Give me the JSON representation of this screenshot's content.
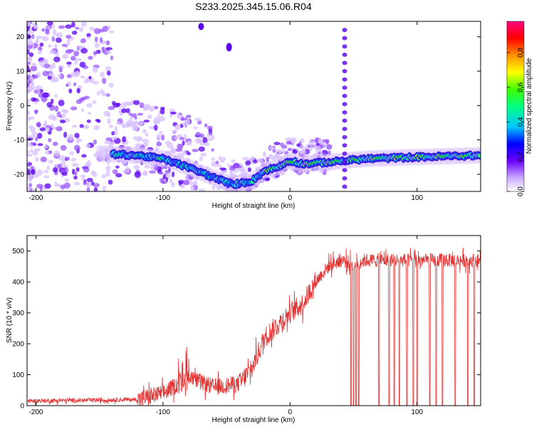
{
  "figure_title": "S233.2025.345.15.06.R04",
  "chart_data": [
    {
      "type": "heatmap",
      "title": "S233.2025.345.15.06.R04",
      "xlabel": "Height of straight line (km)",
      "ylabel": "Frequency (Hz)",
      "xlim": [
        -207,
        150
      ],
      "ylim": [
        -25,
        24.5
      ],
      "xticks": [
        -200,
        -100,
        0,
        100
      ],
      "xtick_labels": [
        "-200",
        "-100",
        "0",
        "100"
      ],
      "yticks": [
        20,
        10,
        0,
        -10,
        -20
      ],
      "ytick_labels": [
        "20",
        "10",
        "0",
        "-10",
        "-20"
      ],
      "ridge": {
        "description": "dominant spectral ridge frequency vs height",
        "x": [
          -150,
          -120,
          -100,
          -80,
          -60,
          -45,
          -30,
          -20,
          -10,
          0,
          10,
          30,
          60,
          100,
          150
        ],
        "y": [
          -14,
          -14.5,
          -15.5,
          -18,
          -21,
          -23,
          -22,
          -19,
          -18,
          -16,
          -17,
          -16.5,
          -15.5,
          -15,
          -14.5
        ]
      },
      "vertical_line_x": 43,
      "colorbar": {
        "label": "Normalized spectral amplitude",
        "range": [
          0,
          0.98
        ],
        "ticks": [
          0.0,
          0.2,
          0.4,
          0.6,
          0.8
        ],
        "tick_labels": [
          "0.0",
          "0.2",
          "0.4",
          "0.6",
          "0.8"
        ],
        "colors": [
          "#ffffff",
          "#6a00ff",
          "#0000ff",
          "#00ffff",
          "#00ff00",
          "#ffff00",
          "#ff8000",
          "#ff0000",
          "#ff0080"
        ]
      }
    },
    {
      "type": "line",
      "xlabel": "Height of straight line (km)",
      "ylabel": "SNR (10 * v/v)",
      "xlim": [
        -207,
        150
      ],
      "ylim": [
        0,
        550
      ],
      "xticks": [
        -200,
        -100,
        0,
        100
      ],
      "xtick_labels": [
        "-200",
        "-100",
        "0",
        "100"
      ],
      "yticks": [
        0,
        100,
        200,
        300,
        400,
        500
      ],
      "ytick_labels": [
        "0",
        "100",
        "200",
        "300",
        "400",
        "500"
      ],
      "line_color": "#e53030",
      "trend": {
        "x": [
          -207,
          -150,
          -120,
          -100,
          -80,
          -60,
          -40,
          -30,
          -20,
          -10,
          0,
          10,
          20,
          30,
          40,
          50,
          60,
          100,
          150
        ],
        "y": [
          15,
          18,
          20,
          40,
          90,
          60,
          70,
          120,
          220,
          260,
          300,
          330,
          400,
          450,
          470,
          460,
          470,
          470,
          470
        ]
      },
      "dropouts_x": [
        48,
        50,
        52,
        54,
        70,
        78,
        82,
        86,
        92,
        97,
        100,
        110,
        115,
        120,
        130,
        140,
        145
      ]
    }
  ]
}
